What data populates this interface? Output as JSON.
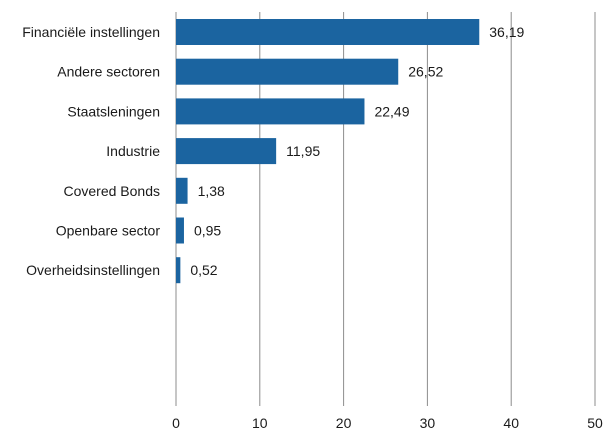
{
  "chart_data": {
    "type": "bar",
    "orientation": "horizontal",
    "title": "",
    "xlabel": "",
    "ylabel": "",
    "categories": [
      "Financiële instellingen",
      "Andere sectoren",
      "Staatsleningen",
      "Industrie",
      "Covered Bonds",
      "Openbare sector",
      "Overheidsinstellingen"
    ],
    "values": [
      36.19,
      26.52,
      22.49,
      11.95,
      1.38,
      0.95,
      0.52
    ],
    "value_labels": [
      "36,19",
      "26,52",
      "22,49",
      "11,95",
      "1,38",
      "0,95",
      "0,52"
    ],
    "xlim": [
      0,
      50
    ],
    "x_ticks": [
      0,
      10,
      20,
      30,
      40,
      50
    ],
    "x_tick_labels": [
      "0",
      "10",
      "20",
      "30",
      "40",
      "50"
    ],
    "grid": "vertical",
    "legend": "none",
    "colors": {
      "bar": "#1b64a0",
      "grid": "#8c8c8c",
      "text": "#1a1a1a"
    }
  }
}
